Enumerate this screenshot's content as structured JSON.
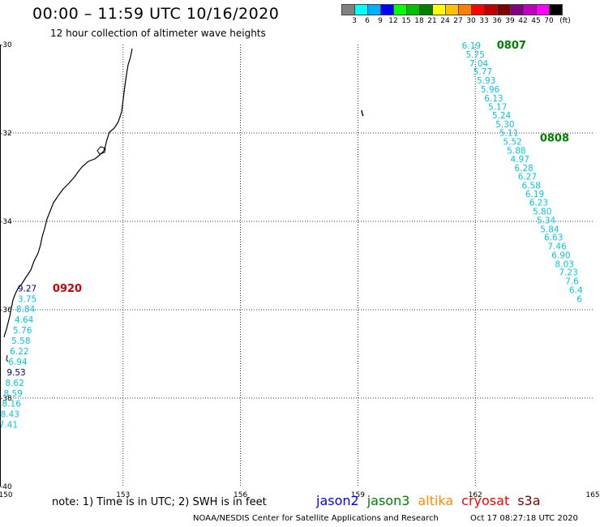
{
  "title": "00:00 – 11:59 UTC 10/16/2020",
  "subtitle": "12 hour collection of altimeter wave heights",
  "legend": {
    "colors": [
      "#808080",
      "#00ffff",
      "#00b0ff",
      "#0000ff",
      "#00ff00",
      "#00c000",
      "#008000",
      "#ffff00",
      "#ffc000",
      "#ff8000",
      "#ff0000",
      "#c00000",
      "#800000",
      "#800080",
      "#c000c0",
      "#ff00ff",
      "#000000"
    ],
    "ticks": [
      "3",
      "6",
      "9",
      "12",
      "15",
      "18",
      "21",
      "24",
      "27",
      "30",
      "33",
      "36",
      "39",
      "42",
      "45",
      "70",
      "(ft)"
    ]
  },
  "axes": {
    "lon": {
      "min": 150,
      "max": 165,
      "ticks": [
        150,
        153,
        156,
        159,
        162,
        165
      ]
    },
    "lat": {
      "min": -40,
      "max": -30,
      "ticks": [
        -30,
        -32,
        -34,
        -36,
        -38,
        -40
      ],
      "labels": [
        "-30",
        "-32",
        "-34",
        "-36",
        "-38",
        "-40"
      ]
    }
  },
  "passes": [
    {
      "label": "0807",
      "color": "#008000",
      "lon": 162.55,
      "lat": -30.0
    },
    {
      "label": "0808",
      "color": "#008000",
      "lon": 163.65,
      "lat": -32.1
    },
    {
      "label": "0920",
      "color": "#cc0000",
      "lon": 151.2,
      "lat": -35.5
    }
  ],
  "tracks": [
    {
      "name": "east-track",
      "points": [
        {
          "lon": 161.9,
          "lat": -30.02,
          "v": "6.19"
        },
        {
          "lon": 162.0,
          "lat": -30.22,
          "v": "5.75"
        },
        {
          "lon": 162.09,
          "lat": -30.42,
          "v": "7.04"
        },
        {
          "lon": 162.19,
          "lat": -30.61,
          "v": "5.77"
        },
        {
          "lon": 162.28,
          "lat": -30.81,
          "v": "5.93"
        },
        {
          "lon": 162.38,
          "lat": -31.01,
          "v": "5.96"
        },
        {
          "lon": 162.47,
          "lat": -31.21,
          "v": "6.13"
        },
        {
          "lon": 162.57,
          "lat": -31.4,
          "v": "5.17"
        },
        {
          "lon": 162.67,
          "lat": -31.6,
          "v": "5.24"
        },
        {
          "lon": 162.76,
          "lat": -31.8,
          "v": "5.30"
        },
        {
          "lon": 162.86,
          "lat": -31.99,
          "v": "5.11"
        },
        {
          "lon": 162.95,
          "lat": -32.19,
          "v": "5.52"
        },
        {
          "lon": 163.05,
          "lat": -32.39,
          "v": "5.88"
        },
        {
          "lon": 163.14,
          "lat": -32.59,
          "v": "4.97"
        },
        {
          "lon": 163.24,
          "lat": -32.79,
          "v": "6.28"
        },
        {
          "lon": 163.33,
          "lat": -32.98,
          "v": "6.27"
        },
        {
          "lon": 163.43,
          "lat": -33.18,
          "v": "6.58"
        },
        {
          "lon": 163.52,
          "lat": -33.38,
          "v": "6.19"
        },
        {
          "lon": 163.62,
          "lat": -33.57,
          "v": "6.23"
        },
        {
          "lon": 163.71,
          "lat": -33.77,
          "v": "5.80"
        },
        {
          "lon": 163.81,
          "lat": -33.97,
          "v": "5.34"
        },
        {
          "lon": 163.9,
          "lat": -34.17,
          "v": "5.84"
        },
        {
          "lon": 164.0,
          "lat": -34.36,
          "v": "6.63"
        },
        {
          "lon": 164.09,
          "lat": -34.56,
          "v": "7.46"
        },
        {
          "lon": 164.19,
          "lat": -34.76,
          "v": "6.90"
        },
        {
          "lon": 164.28,
          "lat": -34.96,
          "v": "8.03"
        },
        {
          "lon": 164.38,
          "lat": -35.15,
          "v": "7.23"
        },
        {
          "lon": 164.47,
          "lat": -35.35,
          "v": "7.6"
        },
        {
          "lon": 164.57,
          "lat": -35.55,
          "v": "6.4"
        },
        {
          "lon": 164.66,
          "lat": -35.75,
          "v": "6"
        }
      ]
    },
    {
      "name": "west-track",
      "points": [
        {
          "lon": 150.55,
          "lat": -35.51,
          "v": "9.27",
          "c": "#000080"
        },
        {
          "lon": 150.55,
          "lat": -35.75,
          "v": "3.75"
        },
        {
          "lon": 150.51,
          "lat": -35.98,
          "v": "8.84"
        },
        {
          "lon": 150.47,
          "lat": -36.22,
          "v": "4.64"
        },
        {
          "lon": 150.43,
          "lat": -36.46,
          "v": "5.76"
        },
        {
          "lon": 150.39,
          "lat": -36.7,
          "v": "5.58"
        },
        {
          "lon": 150.35,
          "lat": -36.94,
          "v": "6.22"
        },
        {
          "lon": 150.31,
          "lat": -37.17,
          "v": "6.94"
        },
        {
          "lon": 150.27,
          "lat": -37.41,
          "v": "9.53",
          "c": "#000080"
        },
        {
          "lon": 150.23,
          "lat": -37.65,
          "v": "8.62"
        },
        {
          "lon": 150.19,
          "lat": -37.89,
          "v": "8.59"
        },
        {
          "lon": 150.15,
          "lat": -38.12,
          "v": "8.16"
        },
        {
          "lon": 150.11,
          "lat": -38.36,
          "v": "8.43"
        },
        {
          "lon": 150.07,
          "lat": -38.6,
          "v": "7.41"
        }
      ]
    }
  ],
  "footer": {
    "note": "note:  1) Time is in UTC;  2) SWH is in feet",
    "satellites": [
      {
        "name": "jason2",
        "color": "#0000ff"
      },
      {
        "name": "jason3",
        "color": "#008000"
      },
      {
        "name": "altika",
        "color": "#ff8c00"
      },
      {
        "name": "cryosat",
        "color": "#ff0000"
      },
      {
        "name": "s3a",
        "color": "#800000"
      }
    ],
    "credit": "NOAA/NESDIS Center for Satellite Applications and Research",
    "timestamp": "Oct 17 08:27:18 UTC 2020"
  }
}
